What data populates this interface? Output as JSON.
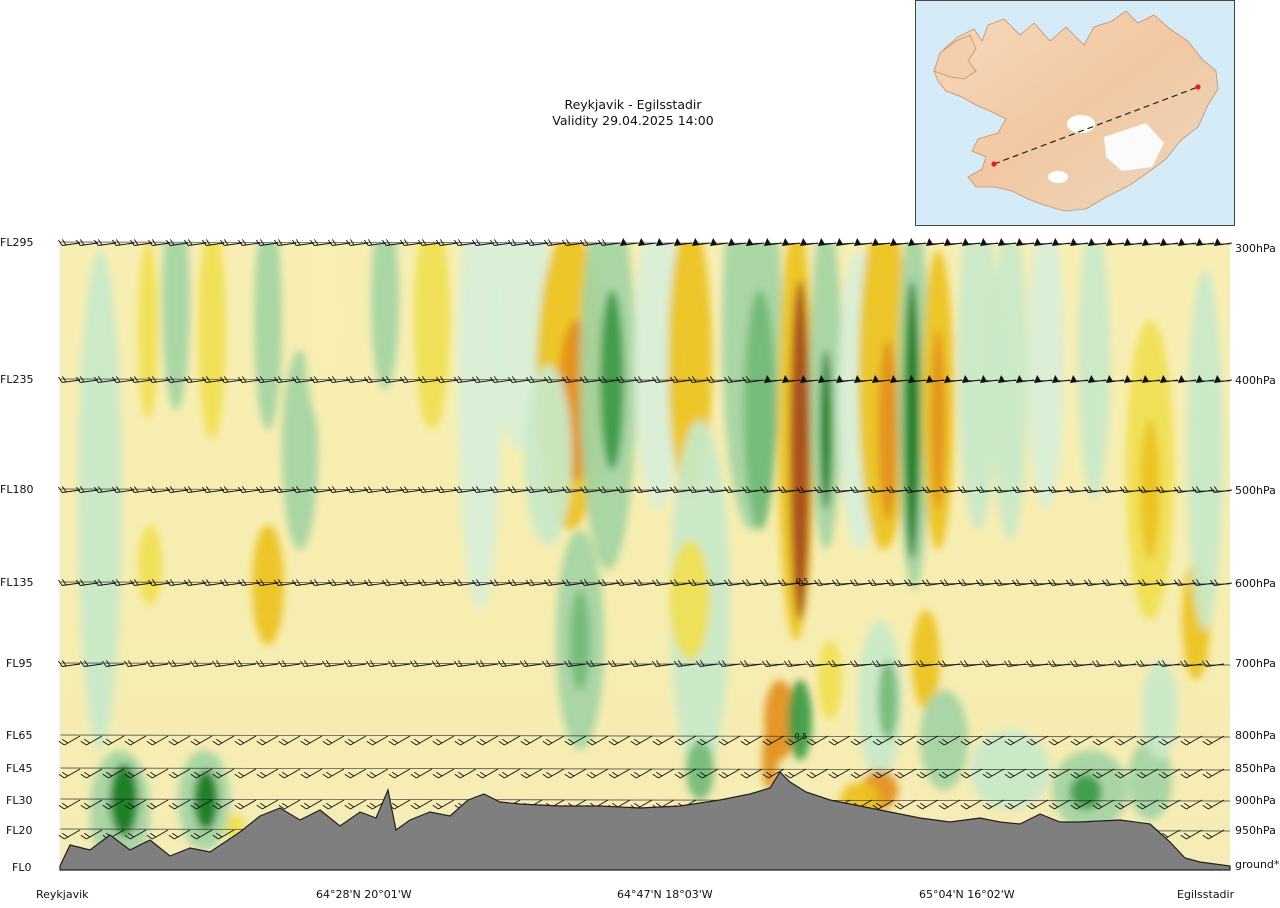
{
  "title": {
    "route": "Reykjavik - Egilsstadir",
    "validity": "Validity 29.04.2025 14:00"
  },
  "inset_map": {
    "name": "Iceland",
    "start_marker_color": "#e0201a",
    "end_marker_color": "#e0201a"
  },
  "chart_data": {
    "type": "heatmap",
    "subtype": "vertical cross-section",
    "title": "Reykjavik - Egilsstadir",
    "subtitle": "Validity 29.04.2025 14:00",
    "y_left_labels": [
      "FL295",
      "FL235",
      "FL180",
      "FL135",
      "FL95",
      "FL65",
      "FL45",
      "FL30",
      "FL20",
      "FL0"
    ],
    "y_right_labels": [
      "300hPa",
      "400hPa",
      "500hPa",
      "600hPa",
      "700hPa",
      "800hPa",
      "850hPa",
      "900hPa",
      "950hPa",
      "ground*"
    ],
    "x_labels": [
      "Reykjavik",
      "64°28'N 20°01'W",
      "64°47'N 18°03'W",
      "65°04'N 16°02'W",
      "Egilsstadir"
    ],
    "flight_levels": [
      295,
      235,
      180,
      135,
      95,
      65,
      45,
      30,
      20,
      0
    ],
    "pressure_levels_hpa": [
      300,
      400,
      500,
      600,
      700,
      800,
      850,
      900,
      950
    ],
    "color_scale": [
      "#fbf7dc",
      "#f8efb2",
      "#f0e050",
      "#ecc21e",
      "#e3901e",
      "#a5491a",
      "#d8efd8",
      "#c9e8c9",
      "#a3d4a3",
      "#73ba76",
      "#3a9a45",
      "#0f7c1e"
    ],
    "annotations": [
      "0.5",
      "0.5"
    ],
    "legend": "none",
    "grid": false
  },
  "axis_colors": {
    "terrain": "#7f7f7f",
    "terrain_edge": "#202020"
  }
}
